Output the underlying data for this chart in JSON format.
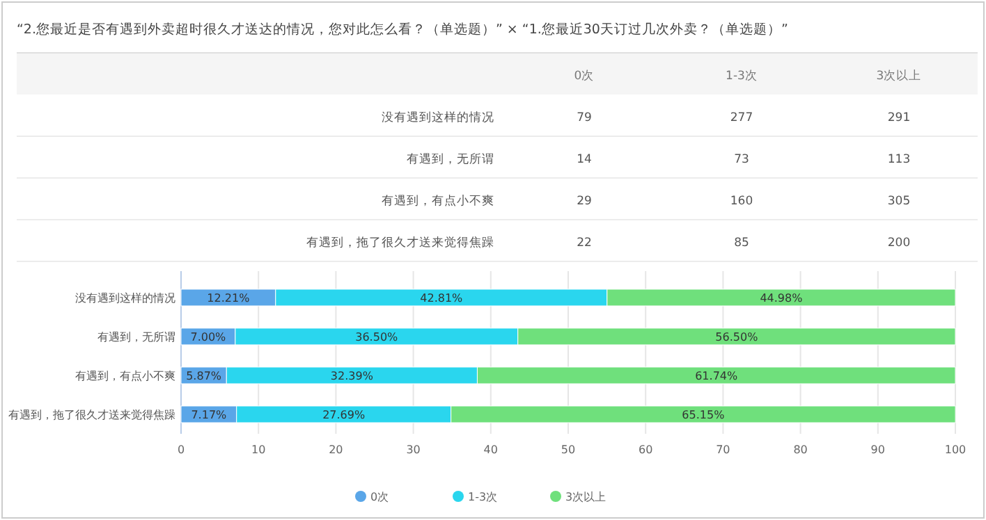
{
  "chart_data": [
    {
      "type": "heatmap",
      "data_labels": true,
      "title": "“2.您最近是否有遇到外卖超时很久才送达的情况，您对此怎么看？（单选题）”   ×   “1.您最近30天订过几次外卖？（单选题）”",
      "categories": [
        "0次",
        "1-3次",
        "3次以上"
      ],
      "y_categories": [
        "没有遇到这样的情况",
        "有遇到，无所谓",
        "有遇到，有点小不爽",
        "有遇到，拖了很久才送来觉得焦躁"
      ],
      "cells": [
        [
          79,
          277,
          291
        ],
        [
          14,
          73,
          113
        ],
        [
          29,
          160,
          305
        ],
        [
          22,
          85,
          200
        ]
      ]
    },
    {
      "type": "bar",
      "orientation": "horizontal",
      "stacked": true,
      "categories": [
        "没有遇到这样的情况",
        "有遇到，无所谓",
        "有遇到，有点小不爽",
        "有遇到，拖了很久才送来觉得焦躁"
      ],
      "series": [
        {
          "name": "0次",
          "color": "#5aa6e8",
          "values": [
            12.21,
            7.0,
            5.87,
            7.17
          ],
          "value_labels": [
            "12.21%",
            "7.00%",
            "5.87%",
            "7.17%"
          ]
        },
        {
          "name": "1-3次",
          "color": "#2ad6ee",
          "values": [
            42.81,
            36.5,
            32.39,
            27.69
          ],
          "value_labels": [
            "42.81%",
            "36.50%",
            "32.39%",
            "27.69%"
          ]
        },
        {
          "name": "3次以上",
          "color": "#6fe07c",
          "values": [
            44.98,
            56.5,
            61.74,
            65.15
          ],
          "value_labels": [
            "44.98%",
            "56.50%",
            "61.74%",
            "65.15%"
          ]
        }
      ],
      "xlim": [
        0,
        100
      ],
      "xticks": [
        0,
        10,
        20,
        30,
        40,
        50,
        60,
        70,
        80,
        90,
        100
      ],
      "grid": "x",
      "legend": "bottom"
    }
  ]
}
